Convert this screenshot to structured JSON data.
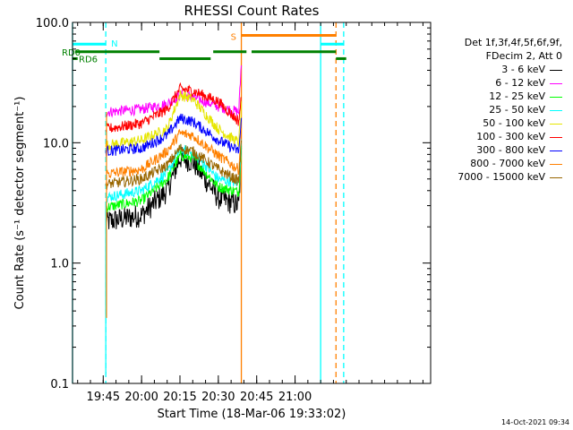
{
  "chart_data": {
    "type": "line",
    "title": "RHESSI Count Rates",
    "xlabel": "Start Time (18-Mar-06 19:33:02)",
    "ylabel": "Count Rate (s⁻¹ detector segment⁻¹)",
    "yscale": "log",
    "ylim": [
      0.1,
      100
    ],
    "xlim": [
      "19:33",
      "21:53"
    ],
    "x_ticks": [
      "19:45",
      "20:00",
      "20:15",
      "20:30",
      "20:45",
      "21:00"
    ],
    "y_ticks": [
      "0.1",
      "1.0",
      "10.0",
      "100.0"
    ],
    "legend_position": "right",
    "legend_header": [
      "Det 1f,3f,4f,5f,6f,9f,",
      "FDecim 2, Att 0"
    ],
    "series": [
      {
        "name": "3 - 6 keV",
        "color": "#000000",
        "x": [
          "19:46",
          "20:00",
          "20:10",
          "20:15",
          "20:20",
          "20:30",
          "20:38",
          "20:39"
        ],
        "y": [
          2.2,
          2.5,
          4.0,
          7.5,
          7.0,
          3.5,
          3.0,
          8.0
        ]
      },
      {
        "name": "6 - 12 keV",
        "color": "#ff00ff",
        "x": [
          "19:46",
          "20:00",
          "20:10",
          "20:15",
          "20:20",
          "20:30",
          "20:38",
          "20:39"
        ],
        "y": [
          18,
          19,
          21,
          25,
          24,
          20,
          18,
          47
        ]
      },
      {
        "name": "12 - 25 keV",
        "color": "#00ff00",
        "x": [
          "19:46",
          "20:00",
          "20:10",
          "20:15",
          "20:20",
          "20:30",
          "20:38",
          "20:39"
        ],
        "y": [
          2.9,
          3.3,
          5.0,
          7.8,
          7.5,
          4.3,
          3.9,
          9.0
        ]
      },
      {
        "name": "25 - 50 keV",
        "color": "#00ffff",
        "x": [
          "19:46",
          "20:00",
          "20:10",
          "20:15",
          "20:20",
          "20:30",
          "20:38",
          "20:39"
        ],
        "y": [
          3.5,
          4.0,
          5.6,
          8.8,
          8.3,
          5.0,
          4.6,
          10.0
        ]
      },
      {
        "name": "50 - 100 keV",
        "color": "#e6e600",
        "x": [
          "19:46",
          "20:00",
          "20:10",
          "20:15",
          "20:20",
          "20:30",
          "20:38",
          "20:39"
        ],
        "y": [
          9.5,
          10.5,
          13,
          25,
          23,
          13,
          10,
          20
        ]
      },
      {
        "name": "100 - 300 keV",
        "color": "#ff0000",
        "x": [
          "19:46",
          "20:00",
          "20:10",
          "20:15",
          "20:20",
          "20:30",
          "20:38",
          "20:39"
        ],
        "y": [
          13,
          14.5,
          19,
          28,
          27,
          22,
          15,
          24
        ]
      },
      {
        "name": "300 - 800 keV",
        "color": "#0000ff",
        "x": [
          "19:46",
          "20:00",
          "20:10",
          "20:15",
          "20:20",
          "20:30",
          "20:38",
          "20:39"
        ],
        "y": [
          8.5,
          9.0,
          11.5,
          16,
          15,
          10.5,
          8.5,
          15
        ]
      },
      {
        "name": "800 - 7000 keV",
        "color": "#ff8000",
        "x": [
          "19:46",
          "20:00",
          "20:10",
          "20:15",
          "20:20",
          "20:30",
          "20:38",
          "20:39"
        ],
        "y": [
          5.5,
          6.0,
          8.5,
          12,
          11.5,
          7.8,
          6.0,
          12
        ]
      },
      {
        "name": "7000 - 15000 keV",
        "color": "#996600",
        "x": [
          "19:46",
          "20:00",
          "20:10",
          "20:15",
          "20:20",
          "20:30",
          "20:38",
          "20:39"
        ],
        "y": [
          4.5,
          5.0,
          6.5,
          9.0,
          8.5,
          6.0,
          4.8,
          10
        ]
      }
    ],
    "annotations": [
      {
        "label": "N",
        "color": "#00ffff",
        "segments": [
          [
            "19:33",
            "19:46"
          ],
          [
            "21:10",
            "21:19"
          ]
        ],
        "y": 66
      },
      {
        "label": "S",
        "color": "#ff8000",
        "segments": [
          [
            "20:39",
            "21:16"
          ]
        ],
        "y": 78
      },
      {
        "label": "RD0",
        "color": "#008000",
        "segments": [
          [
            "19:34",
            "20:07"
          ],
          [
            "20:28",
            "20:41"
          ],
          [
            "20:43",
            "21:16"
          ]
        ],
        "y": 57
      },
      {
        "label": "RD6",
        "color": "#008000",
        "segments": [
          [
            "19:33",
            "19:35"
          ],
          [
            "20:07",
            "20:27"
          ],
          [
            "21:16",
            "21:20"
          ]
        ],
        "y": 50
      }
    ],
    "vertical_lines": [
      {
        "x": "19:33",
        "color": "#00ffff",
        "style": "solid"
      },
      {
        "x": "19:46",
        "color": "#00ffff",
        "style": "dashed"
      },
      {
        "x": "20:39",
        "color": "#ff8000",
        "style": "solid"
      },
      {
        "x": "21:10",
        "color": "#00ffff",
        "style": "solid"
      },
      {
        "x": "21:16",
        "color": "#ff8000",
        "style": "dashed"
      },
      {
        "x": "21:19",
        "color": "#00ffff",
        "style": "dashed"
      }
    ]
  },
  "footer": {
    "timestamp": "14-Oct-2021 09:34"
  }
}
